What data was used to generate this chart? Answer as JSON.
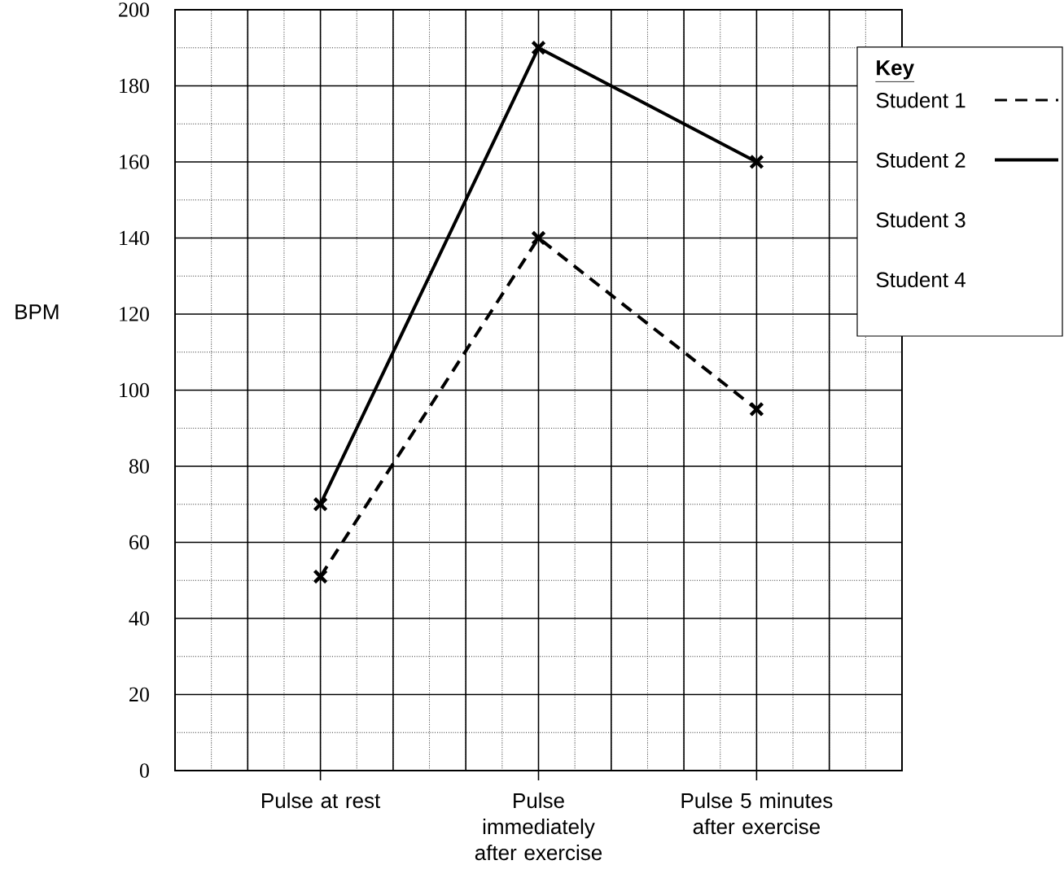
{
  "chart_data": {
    "type": "line",
    "ylabel": "BPM",
    "legend_title": "Key",
    "categories": [
      "Pulse at rest",
      "Pulse immediately after exercise",
      "Pulse 5 minutes after exercise"
    ],
    "series": [
      {
        "name": "Student 1",
        "color": "#000000",
        "line_style": "dashed",
        "values": [
          51,
          140,
          95
        ]
      },
      {
        "name": "Student 2",
        "color": "#000000",
        "line_style": "solid",
        "values": [
          70,
          190,
          160
        ]
      },
      {
        "name": "Student 3",
        "values": [
          null,
          null,
          null
        ]
      },
      {
        "name": "Student 4",
        "values": [
          null,
          null,
          null
        ]
      }
    ],
    "ylim": [
      0,
      200
    ],
    "yticks": [
      0,
      20,
      40,
      60,
      80,
      100,
      120,
      140,
      160,
      180,
      200
    ],
    "grid": true,
    "legend": "top right",
    "marker": "cross"
  }
}
